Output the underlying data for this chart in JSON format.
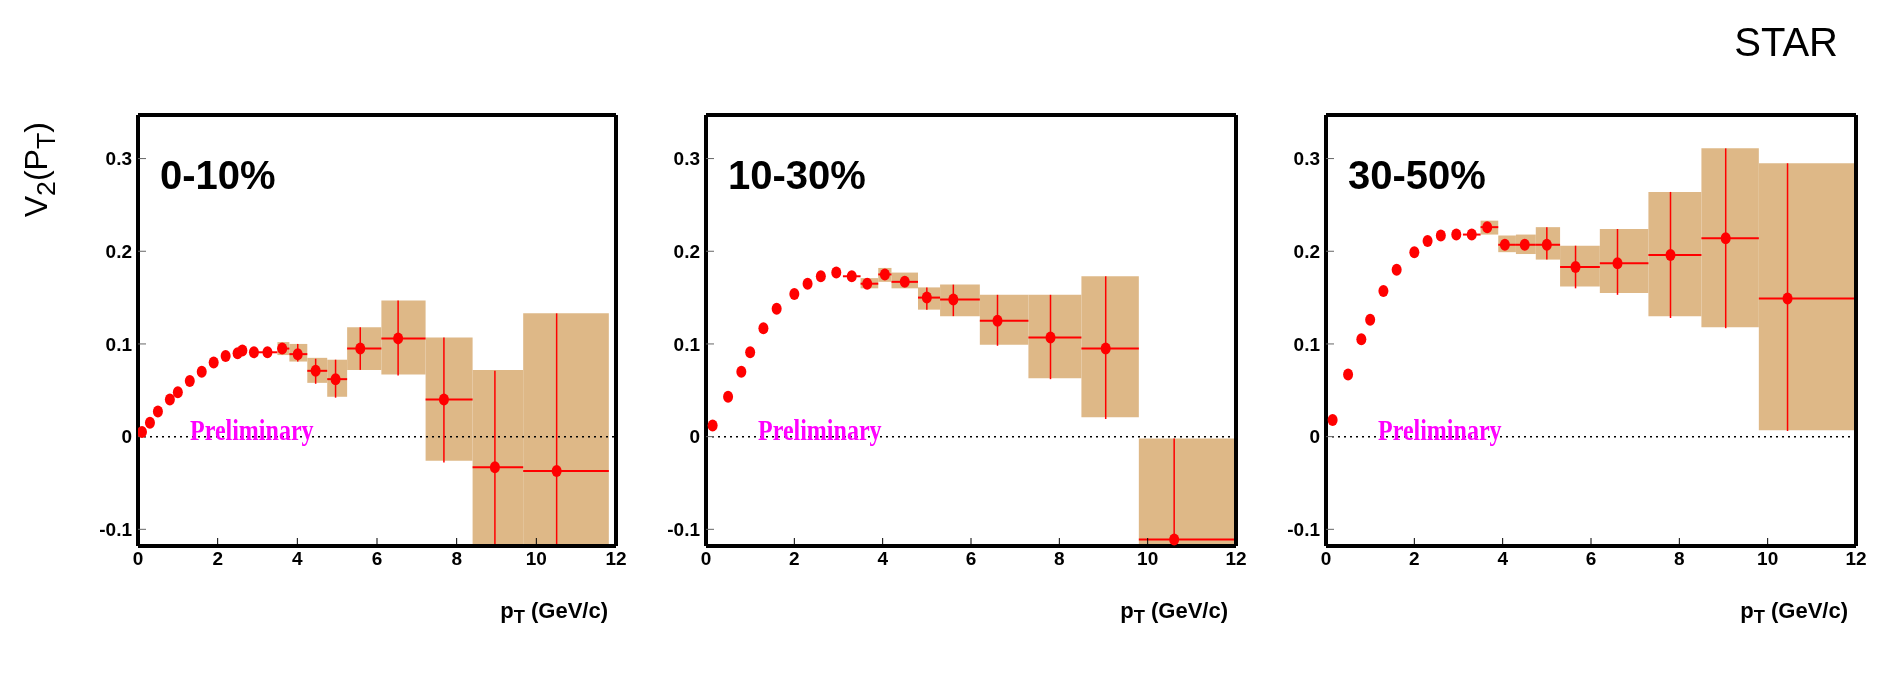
{
  "chart_data": [
    {
      "type": "scatter",
      "title": "0-10%",
      "xlabel": "p$_{T}$ (GeV/c)",
      "ylabel": "V$_{2}$(P$_{T}$)",
      "annotations": [
        "Preliminary"
      ],
      "marker": "circle",
      "xlim": [
        0,
        12
      ],
      "xticks": [
        0,
        2,
        4,
        6,
        8,
        10,
        12
      ],
      "ylim": [
        -0.118,
        0.347
      ],
      "yticks": [
        -0.1,
        0,
        0.1,
        0.2,
        0.3
      ],
      "ref_lines": [
        {
          "axis": "y",
          "value": 0,
          "color": "#000000",
          "line_style": "dotted"
        }
      ],
      "series": [
        {
          "type": "area",
          "color": "#deb887",
          "x": [
            3.5,
            3.8
          ],
          "values": [
            null,
            null
          ],
          "lower": [
            0.088,
            0.088
          ],
          "upper": [
            0.102,
            0.102
          ]
        },
        {
          "type": "area",
          "color": "#deb887",
          "x": [
            3.8,
            4.25
          ],
          "values": [
            null,
            null
          ],
          "lower": [
            0.081,
            0.081
          ],
          "upper": [
            0.1,
            0.1
          ]
        },
        {
          "type": "area",
          "color": "#deb887",
          "x": [
            4.25,
            4.75
          ],
          "values": [
            null,
            null
          ],
          "lower": [
            0.058,
            0.058
          ],
          "upper": [
            0.085,
            0.085
          ]
        },
        {
          "type": "area",
          "color": "#deb887",
          "x": [
            4.75,
            5.25
          ],
          "values": [
            null,
            null
          ],
          "lower": [
            0.043,
            0.043
          ],
          "upper": [
            0.083,
            0.083
          ]
        },
        {
          "type": "area",
          "color": "#deb887",
          "x": [
            5.25,
            6.11
          ],
          "values": [
            null,
            null
          ],
          "lower": [
            0.072,
            0.072
          ],
          "upper": [
            0.118,
            0.118
          ]
        },
        {
          "type": "area",
          "color": "#deb887",
          "x": [
            6.11,
            7.22
          ],
          "values": [
            null,
            null
          ],
          "lower": [
            0.067,
            0.067
          ],
          "upper": [
            0.147,
            0.147
          ]
        },
        {
          "type": "area",
          "color": "#deb887",
          "x": [
            7.22,
            8.4
          ],
          "values": [
            null,
            null
          ],
          "lower": [
            -0.026,
            -0.026
          ],
          "upper": [
            0.107,
            0.107
          ]
        },
        {
          "type": "area",
          "color": "#deb887",
          "x": [
            8.4,
            9.67
          ],
          "values": [
            null,
            null
          ],
          "lower": [
            -0.117,
            -0.117
          ],
          "upper": [
            0.072,
            0.072
          ]
        },
        {
          "type": "area",
          "color": "#deb887",
          "x": [
            9.67,
            11.82
          ],
          "values": [
            null,
            null
          ],
          "lower": [
            -0.117,
            -0.117
          ],
          "upper": [
            0.133,
            0.133
          ]
        },
        {
          "color": "#ff0000",
          "x": [
            0.1,
            0.3,
            0.5,
            0.8,
            1.0,
            1.3,
            1.6,
            1.9,
            2.2,
            2.5,
            2.62,
            2.91,
            3.25,
            3.62,
            4.01,
            4.46,
            4.96,
            5.58,
            6.53,
            7.68,
            8.96,
            10.51
          ],
          "values": [
            0.005,
            0.015,
            0.027,
            0.04,
            0.048,
            0.06,
            0.07,
            0.08,
            0.087,
            0.09,
            0.093,
            0.091,
            0.091,
            0.095,
            0.089,
            0.071,
            0.062,
            0.095,
            0.106,
            0.04,
            -0.033,
            -0.037
          ],
          "xerrors": [
            null,
            null,
            null,
            null,
            null,
            null,
            null,
            null,
            null,
            null,
            null,
            null,
            [
              3.0,
              3.5
            ],
            [
              3.5,
              3.8
            ],
            [
              3.8,
              4.25
            ],
            [
              4.25,
              4.75
            ],
            [
              4.75,
              5.25
            ],
            [
              5.25,
              6.11
            ],
            [
              6.11,
              7.22
            ],
            [
              7.22,
              8.4
            ],
            [
              8.4,
              9.67
            ],
            [
              9.67,
              11.82
            ]
          ],
          "errors": [
            null,
            null,
            null,
            null,
            null,
            null,
            null,
            null,
            null,
            null,
            null,
            null,
            null,
            null,
            [
              0.081,
              0.1
            ],
            [
              0.057,
              0.084
            ],
            [
              0.042,
              0.083
            ],
            [
              0.072,
              0.118
            ],
            [
              0.066,
              0.147
            ],
            [
              -0.028,
              0.107
            ],
            [
              -0.117,
              0.071
            ],
            [
              -0.117,
              0.133
            ]
          ]
        }
      ]
    },
    {
      "type": "scatter",
      "title": "10-30%",
      "xlabel": "p$_{T}$ (GeV/c)",
      "annotations": [
        "Preliminary"
      ],
      "marker": "circle",
      "xlim": [
        0,
        12
      ],
      "xticks": [
        0,
        2,
        4,
        6,
        8,
        10,
        12
      ],
      "ylim": [
        -0.118,
        0.347
      ],
      "yticks": [
        -0.1,
        0,
        0.1,
        0.2,
        0.3
      ],
      "ref_lines": [
        {
          "axis": "y",
          "value": 0,
          "color": "#000000",
          "line_style": "dotted"
        }
      ],
      "series": [
        {
          "type": "area",
          "color": "#deb887",
          "x": [
            3.5,
            3.9
          ],
          "values": [
            null,
            null
          ],
          "lower": [
            0.16,
            0.16
          ],
          "upper": [
            0.171,
            0.171
          ]
        },
        {
          "type": "area",
          "color": "#deb887",
          "x": [
            3.9,
            4.2
          ],
          "values": [
            null,
            null
          ],
          "lower": [
            0.167,
            0.167
          ],
          "upper": [
            0.182,
            0.182
          ]
        },
        {
          "type": "area",
          "color": "#deb887",
          "x": [
            4.2,
            4.8
          ],
          "values": [
            null,
            null
          ],
          "lower": [
            0.16,
            0.16
          ],
          "upper": [
            0.177,
            0.177
          ]
        },
        {
          "type": "area",
          "color": "#deb887",
          "x": [
            4.8,
            5.3
          ],
          "values": [
            null,
            null
          ],
          "lower": [
            0.137,
            0.137
          ],
          "upper": [
            0.161,
            0.161
          ]
        },
        {
          "type": "area",
          "color": "#deb887",
          "x": [
            5.3,
            6.2
          ],
          "values": [
            null,
            null
          ],
          "lower": [
            0.13,
            0.13
          ],
          "upper": [
            0.164,
            0.164
          ]
        },
        {
          "type": "area",
          "color": "#deb887",
          "x": [
            6.2,
            7.3
          ],
          "values": [
            null,
            null
          ],
          "lower": [
            0.099,
            0.099
          ],
          "upper": [
            0.153,
            0.153
          ]
        },
        {
          "type": "area",
          "color": "#deb887",
          "x": [
            7.3,
            8.5
          ],
          "values": [
            null,
            null
          ],
          "lower": [
            0.063,
            0.063
          ],
          "upper": [
            0.153,
            0.153
          ]
        },
        {
          "type": "area",
          "color": "#deb887",
          "x": [
            8.5,
            9.8
          ],
          "values": [
            null,
            null
          ],
          "lower": [
            0.021,
            0.021
          ],
          "upper": [
            0.173,
            0.173
          ]
        },
        {
          "type": "area",
          "color": "#deb887",
          "x": [
            9.8,
            12
          ],
          "values": [
            null,
            null
          ],
          "lower": [
            -0.118,
            -0.118
          ],
          "upper": [
            -0.002,
            -0.002
          ]
        },
        {
          "color": "#ff0000",
          "x": [
            0.15,
            0.5,
            0.8,
            1.0,
            1.3,
            1.6,
            2.0,
            2.3,
            2.6,
            2.95,
            3.3,
            3.65,
            4.05,
            4.5,
            5.0,
            5.6,
            6.6,
            7.8,
            9.05,
            10.6
          ],
          "values": [
            0.012,
            0.043,
            0.07,
            0.091,
            0.117,
            0.138,
            0.154,
            0.165,
            0.173,
            0.177,
            0.173,
            0.165,
            0.175,
            0.167,
            0.15,
            0.148,
            0.125,
            0.107,
            0.095,
            -0.111
          ],
          "xerrors": [
            null,
            null,
            null,
            null,
            null,
            null,
            null,
            null,
            null,
            null,
            [
              3.1,
              3.5
            ],
            [
              3.5,
              3.9
            ],
            [
              3.9,
              4.2
            ],
            [
              4.2,
              4.8
            ],
            [
              4.8,
              5.3
            ],
            [
              5.3,
              6.2
            ],
            [
              6.2,
              7.3
            ],
            [
              7.3,
              8.5
            ],
            [
              8.5,
              9.8
            ],
            [
              9.8,
              12
            ]
          ],
          "errors": [
            null,
            null,
            null,
            null,
            null,
            null,
            null,
            null,
            null,
            null,
            null,
            null,
            null,
            null,
            [
              0.137,
              0.161
            ],
            [
              0.13,
              0.164
            ],
            [
              0.098,
              0.153
            ],
            [
              0.062,
              0.153
            ],
            [
              0.019,
              0.173
            ],
            [
              -0.118,
              -0.002
            ]
          ]
        }
      ]
    },
    {
      "type": "scatter",
      "title": "30-50%",
      "xlabel": "p$_{T}$ (GeV/c)",
      "annotations": [
        "Preliminary",
        "STAR"
      ],
      "marker": "circle",
      "xlim": [
        0,
        12
      ],
      "xticks": [
        0,
        2,
        4,
        6,
        8,
        10,
        12
      ],
      "ylim": [
        -0.118,
        0.347
      ],
      "yticks": [
        -0.1,
        0,
        0.1,
        0.2,
        0.3
      ],
      "ref_lines": [
        {
          "axis": "y",
          "value": 0,
          "color": "#000000",
          "line_style": "dotted"
        }
      ],
      "series": [
        {
          "type": "area",
          "color": "#deb887",
          "x": [
            3.5,
            3.9
          ],
          "values": [
            null,
            null
          ],
          "lower": [
            0.218,
            0.218
          ],
          "upper": [
            0.233,
            0.233
          ]
        },
        {
          "type": "area",
          "color": "#deb887",
          "x": [
            3.9,
            4.3
          ],
          "values": [
            null,
            null
          ],
          "lower": [
            0.199,
            0.199
          ],
          "upper": [
            0.217,
            0.217
          ]
        },
        {
          "type": "area",
          "color": "#deb887",
          "x": [
            4.3,
            4.75
          ],
          "values": [
            null,
            null
          ],
          "lower": [
            0.197,
            0.197
          ],
          "upper": [
            0.218,
            0.218
          ]
        },
        {
          "type": "area",
          "color": "#deb887",
          "x": [
            4.75,
            5.3
          ],
          "values": [
            null,
            null
          ],
          "lower": [
            0.191,
            0.191
          ],
          "upper": [
            0.226,
            0.226
          ]
        },
        {
          "type": "area",
          "color": "#deb887",
          "x": [
            5.3,
            6.2
          ],
          "values": [
            null,
            null
          ],
          "lower": [
            0.162,
            0.162
          ],
          "upper": [
            0.206,
            0.206
          ]
        },
        {
          "type": "area",
          "color": "#deb887",
          "x": [
            6.2,
            7.3
          ],
          "values": [
            null,
            null
          ],
          "lower": [
            0.155,
            0.155
          ],
          "upper": [
            0.224,
            0.224
          ]
        },
        {
          "type": "area",
          "color": "#deb887",
          "x": [
            7.3,
            8.5
          ],
          "values": [
            null,
            null
          ],
          "lower": [
            0.13,
            0.13
          ],
          "upper": [
            0.264,
            0.264
          ]
        },
        {
          "type": "area",
          "color": "#deb887",
          "x": [
            8.5,
            9.8
          ],
          "values": [
            null,
            null
          ],
          "lower": [
            0.118,
            0.118
          ],
          "upper": [
            0.311,
            0.311
          ]
        },
        {
          "type": "area",
          "color": "#deb887",
          "x": [
            9.8,
            12
          ],
          "values": [
            null,
            null
          ],
          "lower": [
            0.007,
            0.007
          ],
          "upper": [
            0.295,
            0.295
          ]
        },
        {
          "color": "#ff0000",
          "x": [
            0.15,
            0.5,
            0.8,
            1.0,
            1.3,
            1.6,
            2.0,
            2.3,
            2.6,
            2.95,
            3.3,
            3.65,
            4.05,
            4.5,
            5.0,
            5.65,
            6.6,
            7.8,
            9.05,
            10.45
          ],
          "values": [
            0.018,
            0.067,
            0.105,
            0.126,
            0.157,
            0.18,
            0.199,
            0.211,
            0.217,
            0.218,
            0.218,
            0.226,
            0.207,
            0.207,
            0.207,
            0.183,
            0.187,
            0.196,
            0.214,
            0.149
          ],
          "xerrors": [
            null,
            null,
            null,
            null,
            null,
            null,
            null,
            null,
            null,
            null,
            [
              3.1,
              3.5
            ],
            [
              3.5,
              3.9
            ],
            [
              3.9,
              4.3
            ],
            [
              4.3,
              4.75
            ],
            [
              4.75,
              5.3
            ],
            [
              5.3,
              6.2
            ],
            [
              6.2,
              7.3
            ],
            [
              7.3,
              8.5
            ],
            [
              8.5,
              9.8
            ],
            [
              9.8,
              12
            ]
          ],
          "errors": [
            null,
            null,
            null,
            null,
            null,
            null,
            null,
            null,
            null,
            null,
            null,
            null,
            null,
            null,
            [
              0.191,
              0.226
            ],
            [
              0.16,
              0.206
            ],
            [
              0.153,
              0.224
            ],
            [
              0.128,
              0.264
            ],
            [
              0.117,
              0.311
            ],
            [
              0.006,
              0.295
            ]
          ]
        }
      ]
    }
  ]
}
